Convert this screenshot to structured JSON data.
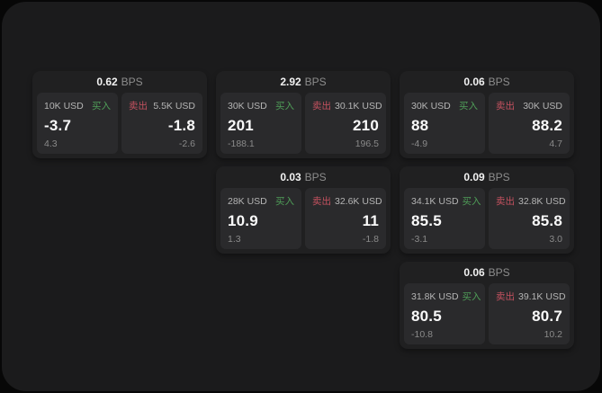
{
  "labels": {
    "bps_unit": "BPS",
    "buy": "买入",
    "sell": "卖出"
  },
  "colors": {
    "buy_color": "#4f9e58",
    "sell_color": "#c4515f",
    "panel_bg": "#1b1b1c",
    "card_bg": "#202021",
    "tile_bg": "#2a2a2c"
  },
  "cards": [
    {
      "bps": "0.62",
      "buy": {
        "notional": "10K USD",
        "price": "-3.7",
        "delta": "4.3"
      },
      "sell": {
        "notional": "5.5K USD",
        "price": "-1.8",
        "delta": "-2.6"
      }
    },
    {
      "bps": "2.92",
      "buy": {
        "notional": "30K USD",
        "price": "201",
        "delta": "-188.1"
      },
      "sell": {
        "notional": "30.1K USD",
        "price": "210",
        "delta": "196.5"
      }
    },
    {
      "bps": "0.06",
      "buy": {
        "notional": "30K USD",
        "price": "88",
        "delta": "-4.9"
      },
      "sell": {
        "notional": "30K USD",
        "price": "88.2",
        "delta": "4.7"
      }
    },
    {
      "bps": "0.03",
      "buy": {
        "notional": "28K USD",
        "price": "10.9",
        "delta": "1.3"
      },
      "sell": {
        "notional": "32.6K USD",
        "price": "11",
        "delta": "-1.8"
      }
    },
    {
      "bps": "0.09",
      "buy": {
        "notional": "34.1K USD",
        "price": "85.5",
        "delta": "-3.1"
      },
      "sell": {
        "notional": "32.8K USD",
        "price": "85.8",
        "delta": "3.0"
      }
    },
    {
      "bps": "0.06",
      "buy": {
        "notional": "31.8K USD",
        "price": "80.5",
        "delta": "-10.8"
      },
      "sell": {
        "notional": "39.1K USD",
        "price": "80.7",
        "delta": "10.2"
      }
    }
  ]
}
